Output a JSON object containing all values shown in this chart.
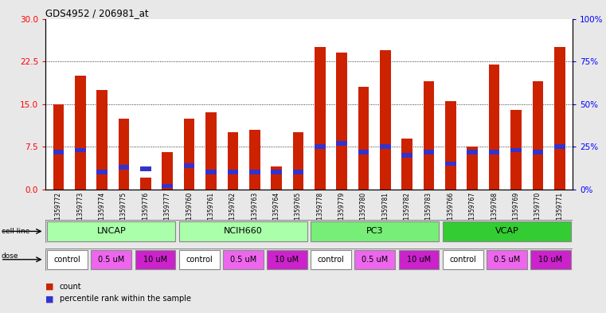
{
  "title": "GDS4952 / 206981_at",
  "samples": [
    "GSM1359772",
    "GSM1359773",
    "GSM1359774",
    "GSM1359775",
    "GSM1359776",
    "GSM1359777",
    "GSM1359760",
    "GSM1359761",
    "GSM1359762",
    "GSM1359763",
    "GSM1359764",
    "GSM1359765",
    "GSM1359778",
    "GSM1359779",
    "GSM1359780",
    "GSM1359781",
    "GSM1359782",
    "GSM1359783",
    "GSM1359766",
    "GSM1359767",
    "GSM1359768",
    "GSM1359769",
    "GSM1359770",
    "GSM1359771"
  ],
  "counts": [
    15.0,
    20.0,
    17.5,
    12.5,
    2.0,
    6.5,
    12.5,
    13.5,
    10.0,
    10.5,
    4.0,
    10.0,
    25.0,
    24.0,
    18.0,
    24.5,
    9.0,
    19.0,
    15.5,
    7.5,
    22.0,
    14.0,
    19.0,
    25.0
  ],
  "percentile_ranks": [
    22,
    23,
    10,
    13,
    12,
    2,
    14,
    10,
    10,
    10,
    10,
    10,
    25,
    27,
    22,
    25,
    20,
    22,
    15,
    22,
    22,
    23,
    22,
    25
  ],
  "bar_color": "#cc2200",
  "percentile_color": "#3333cc",
  "cell_lines": [
    "LNCAP",
    "NCIH660",
    "PC3",
    "VCAP"
  ],
  "cell_line_spans": [
    [
      0,
      6
    ],
    [
      6,
      12
    ],
    [
      12,
      18
    ],
    [
      18,
      24
    ]
  ],
  "cell_line_colors": [
    "#bbffbb",
    "#bbffbb",
    "#88ee88",
    "#44cc44"
  ],
  "dose_colors": [
    "#ffffff",
    "#ee66ee",
    "#cc22cc"
  ],
  "ylim_left": [
    0,
    30
  ],
  "ylim_right": [
    0,
    100
  ],
  "yticks_left": [
    0,
    7.5,
    15.0,
    22.5,
    30
  ],
  "yticks_right": [
    0,
    25,
    50,
    75,
    100
  ],
  "ytick_labels_right": [
    "0%",
    "25%",
    "50%",
    "75%",
    "100%"
  ],
  "background_color": "#e8e8e8",
  "plot_bg_color": "#ffffff",
  "bar_width": 0.5
}
